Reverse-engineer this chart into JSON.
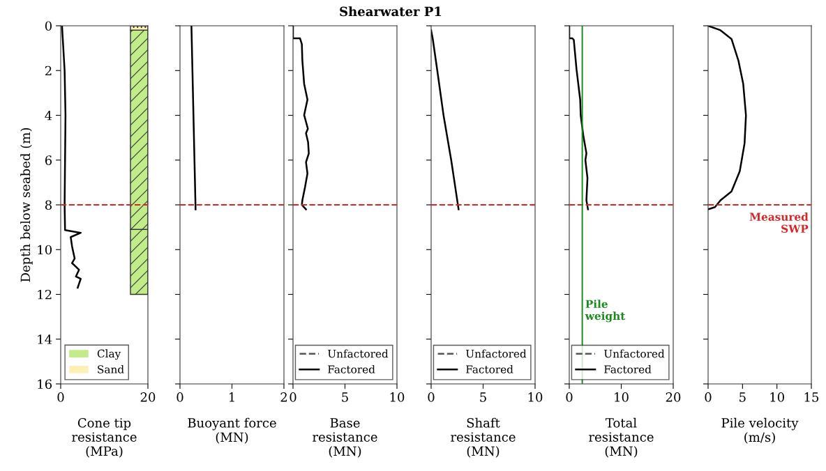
{
  "chart_data": [
    {
      "type": "line",
      "ylabel": "Depth below seabed (m)",
      "xlabel": "Cone tip\nresistance\n(MPa)",
      "xlim": [
        0,
        20
      ],
      "xticks": [
        0,
        20
      ],
      "ylim": [
        16,
        0
      ],
      "yticks": [
        0,
        2,
        4,
        6,
        8,
        10,
        12,
        14,
        16
      ],
      "legend": "bottom left",
      "ref_lines": [
        {
          "axis": "y",
          "value": 8,
          "color": "#d62728",
          "line_style": "dashed"
        }
      ],
      "series": [
        {
          "color": "#000000",
          "x": [
            0.3,
            0.9,
            1.1,
            1.0,
            0.9,
            1.0,
            4.6,
            2.3,
            2.6,
            3.2,
            2.6,
            4.2,
            3.5,
            4.6,
            3.9
          ],
          "values": [
            0,
            2,
            4,
            6,
            8,
            9.13,
            9.25,
            9.44,
            9.85,
            10.4,
            10.6,
            10.9,
            11.2,
            11.3,
            11.7
          ]
        },
        {
          "type": "bar",
          "name": "Clay",
          "color": "#c2ec8a",
          "x": [
            18,
            18
          ],
          "base": [
            0.2,
            9.1
          ],
          "values": [
            8.9,
            2.9
          ]
        },
        {
          "type": "bar",
          "name": "Sand",
          "color": "#fdf0b4",
          "x": [
            18
          ],
          "base": [
            0
          ],
          "values": [
            0.2
          ]
        }
      ]
    },
    {
      "type": "line",
      "xlabel": "Buoyant force\n(MN)",
      "xlim": [
        0,
        2
      ],
      "xticks": [
        0,
        1,
        2
      ],
      "ylim": [
        16,
        0
      ],
      "yticks": [
        0,
        2,
        4,
        6,
        8,
        10,
        12,
        14,
        16
      ],
      "tick_labels": "x",
      "ref_lines": [
        {
          "axis": "y",
          "value": 8,
          "color": "#d62728",
          "line_style": "dashed"
        }
      ],
      "series": [
        {
          "color": "#000000",
          "x": [
            0.22,
            0.3
          ],
          "values": [
            0,
            8.2
          ]
        }
      ]
    },
    {
      "type": "line",
      "title": "Shearwater P1",
      "xlabel": "Base\nresistance\n(MN)",
      "xlim": [
        0,
        10
      ],
      "xticks": [
        0,
        5,
        10
      ],
      "ylim": [
        16,
        0
      ],
      "yticks": [
        0,
        2,
        4,
        6,
        8,
        10,
        12,
        14,
        16
      ],
      "tick_labels": "x",
      "legend": "bottom right",
      "ref_lines": [
        {
          "axis": "y",
          "value": 8,
          "color": "#d62728",
          "line_style": "dashed"
        }
      ],
      "series": [
        {
          "name": "Unfactored",
          "color": "#555555",
          "line_style": "dashed",
          "x": [
            null
          ],
          "values": [
            null
          ]
        },
        {
          "name": "Factored",
          "color": "#000000",
          "line_style": "solid",
          "x": [
            0,
            0,
            0.67,
            0.85,
            0.9,
            1.07,
            1.39,
            1.07,
            1.43,
            1.25,
            1.45,
            1.52,
            1.25,
            1.39,
            1.16,
            0.9,
            0.85,
            1.25
          ],
          "values": [
            0,
            0.56,
            0.56,
            0.82,
            1.55,
            2.59,
            3.3,
            3.99,
            4.6,
            4.8,
            5.2,
            5.7,
            6.1,
            6.6,
            7.2,
            7.8,
            8.0,
            8.2
          ]
        }
      ]
    },
    {
      "type": "line",
      "xlabel": "Shaft\nresistance\n(MN)",
      "xlim": [
        0,
        10
      ],
      "xticks": [
        0,
        5,
        10
      ],
      "ylim": [
        16,
        0
      ],
      "yticks": [
        0,
        2,
        4,
        6,
        8,
        10,
        12,
        14,
        16
      ],
      "tick_labels": "x",
      "legend": "bottom right",
      "ref_lines": [
        {
          "axis": "y",
          "value": 8,
          "color": "#d62728",
          "line_style": "dashed"
        }
      ],
      "series": [
        {
          "name": "Unfactored",
          "color": "#555555",
          "line_style": "dashed",
          "x": [
            null
          ],
          "values": [
            null
          ]
        },
        {
          "name": "Factored",
          "color": "#000000",
          "line_style": "solid",
          "x": [
            0,
            0.16,
            0.58,
            1.19,
            1.93,
            2.64
          ],
          "values": [
            0.2,
            0.6,
            1.96,
            3.99,
            6.0,
            8.2
          ]
        }
      ]
    },
    {
      "type": "line",
      "xlabel": "Total\nresistance\n(MN)",
      "xlim": [
        0,
        20
      ],
      "xticks": [
        0,
        10,
        20
      ],
      "ylim": [
        16,
        0
      ],
      "yticks": [
        0,
        2,
        4,
        6,
        8,
        10,
        12,
        14,
        16
      ],
      "tick_labels": "x",
      "legend": "bottom right",
      "ref_lines": [
        {
          "axis": "y",
          "value": 8,
          "color": "#d62728",
          "line_style": "dashed"
        },
        {
          "axis": "x",
          "value": 2.5,
          "color": "#1a8a1a",
          "line_style": "solid",
          "label": "Pile\nweight"
        }
      ],
      "series": [
        {
          "name": "Unfactored",
          "color": "#555555",
          "line_style": "dashed",
          "x": [
            null
          ],
          "values": [
            null
          ]
        },
        {
          "name": "Factored",
          "color": "#000000",
          "line_style": "solid",
          "x": [
            0,
            0,
            0.6,
            0.87,
            1.4,
            2.1,
            2.2,
            2.7,
            3.3,
            3.1,
            3.5,
            3.3,
            3.6
          ],
          "values": [
            0,
            0.56,
            0.56,
            0.63,
            1.96,
            3.3,
            4.0,
            4.9,
            5.7,
            6.0,
            6.8,
            7.8,
            8.2
          ]
        }
      ]
    },
    {
      "type": "line",
      "xlabel": "Pile velocity\n(m/s)",
      "xlim": [
        0,
        15
      ],
      "xticks": [
        0,
        5,
        10,
        15
      ],
      "ylim": [
        16,
        0
      ],
      "yticks": [
        0,
        2,
        4,
        6,
        8,
        10,
        12,
        14,
        16
      ],
      "tick_labels": "x",
      "ref_lines": [
        {
          "axis": "y",
          "value": 8,
          "color": "#d62728",
          "line_style": "dashed",
          "label": "Measured\nSWP"
        }
      ],
      "series": [
        {
          "color": "#000000",
          "x": [
            0,
            1.8,
            3.4,
            4.4,
            5.1,
            5.5,
            5.3,
            4.6,
            3.4,
            1.8,
            1.0,
            0
          ],
          "values": [
            0,
            0.2,
            0.59,
            1.55,
            2.59,
            4.0,
            5.25,
            6.5,
            7.4,
            7.8,
            8.1,
            8.2
          ]
        }
      ]
    }
  ]
}
